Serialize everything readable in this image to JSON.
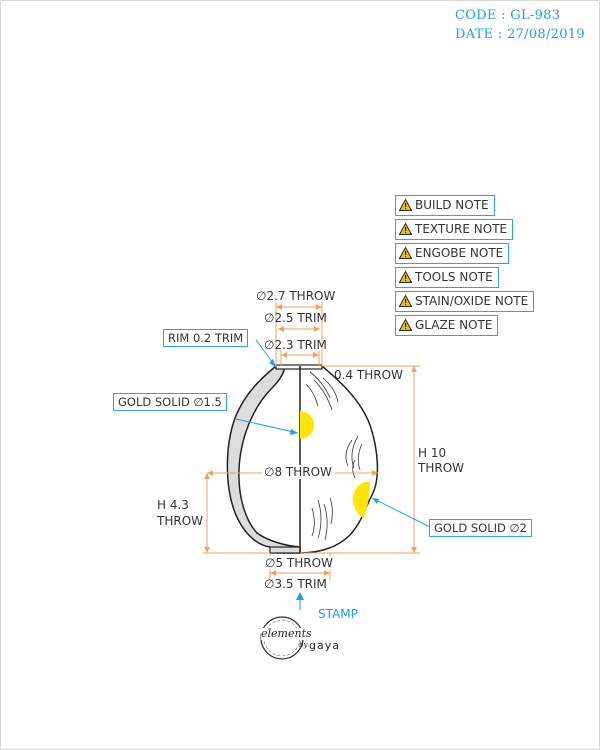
{
  "header": {
    "code": "CODE : GL-983",
    "date": "DATE : 27/08/2019"
  },
  "notes": [
    "BUILD NOTE",
    "TEXTURE NOTE",
    "ENGOBE NOTE",
    "TOOLS NOTE",
    "STAIN/OXIDE NOTE",
    "GLAZE NOTE"
  ],
  "dimensions": {
    "top_throw": "∅2.7 THROW",
    "top_trim": "∅2.5 TRIM",
    "inner_trim": "∅2.3 TRIM",
    "lip_throw": "0.4 THROW",
    "body_throw": "∅8 THROW",
    "height_label": "H 10",
    "height_unit": "THROW",
    "low_height_label": "H 4.3",
    "low_height_unit": "THROW",
    "foot_throw": "∅5 THROW",
    "foot_trim": "∅3.5 TRIM"
  },
  "callouts": {
    "rim": "RIM 0.2 TRIM",
    "gold_small": "GOLD SOLID ∅1.5",
    "gold_large": "GOLD SOLID ∅2"
  },
  "stamp_label": "STAMP",
  "logo": {
    "text_main": "elements",
    "text_by": "by",
    "text_brand": "gaya"
  },
  "colors": {
    "accent": "#1aa3d9",
    "dimension": "#f0a35a",
    "gold": "#ffe600",
    "outline": "#222222",
    "wall": "#dcdcdc"
  }
}
